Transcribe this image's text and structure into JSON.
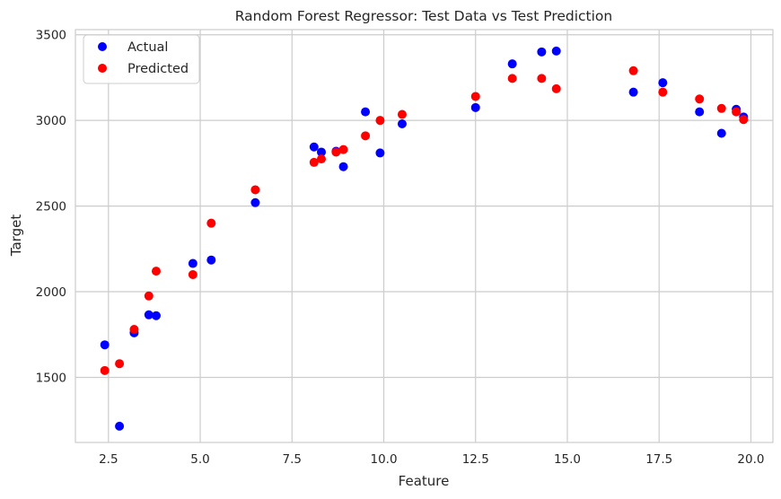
{
  "chart_data": {
    "type": "scatter",
    "title": "Random Forest Regressor: Test Data vs Test Prediction",
    "xlabel": "Feature",
    "ylabel": "Target",
    "xlim": [
      1.6,
      20.6
    ],
    "ylim": [
      1120,
      3530
    ],
    "xticks": [
      2.5,
      5.0,
      7.5,
      10.0,
      12.5,
      15.0,
      17.5,
      20.0
    ],
    "xtick_labels": [
      "2.5",
      "5.0",
      "7.5",
      "10.0",
      "12.5",
      "15.0",
      "17.5",
      "20.0"
    ],
    "yticks": [
      1500,
      2000,
      2500,
      3000,
      3500
    ],
    "ytick_labels": [
      "1500",
      "2000",
      "2500",
      "3000",
      "3500"
    ],
    "grid": true,
    "legend_position": "top-left",
    "series": [
      {
        "name": "Actual",
        "color": "#0000ff",
        "points": [
          [
            2.4,
            1690
          ],
          [
            2.8,
            1215
          ],
          [
            3.2,
            1760
          ],
          [
            3.6,
            1865
          ],
          [
            3.8,
            1860
          ],
          [
            4.8,
            2165
          ],
          [
            5.3,
            2185
          ],
          [
            6.5,
            2520
          ],
          [
            8.1,
            2845
          ],
          [
            8.3,
            2815
          ],
          [
            8.7,
            2820
          ],
          [
            8.9,
            2730
          ],
          [
            9.5,
            3050
          ],
          [
            9.9,
            2810
          ],
          [
            10.5,
            2980
          ],
          [
            12.5,
            3075
          ],
          [
            13.5,
            3330
          ],
          [
            14.3,
            3400
          ],
          [
            14.7,
            3405
          ],
          [
            16.8,
            3165
          ],
          [
            17.6,
            3220
          ],
          [
            18.6,
            3050
          ],
          [
            19.2,
            2925
          ],
          [
            19.6,
            3065
          ],
          [
            19.8,
            3020
          ]
        ]
      },
      {
        "name": "Predicted",
        "color": "#ff0000",
        "points": [
          [
            2.4,
            1540
          ],
          [
            2.8,
            1580
          ],
          [
            3.2,
            1780
          ],
          [
            3.6,
            1975
          ],
          [
            3.8,
            2120
          ],
          [
            4.8,
            2100
          ],
          [
            5.3,
            2400
          ],
          [
            6.5,
            2595
          ],
          [
            8.1,
            2755
          ],
          [
            8.3,
            2775
          ],
          [
            8.7,
            2815
          ],
          [
            8.9,
            2830
          ],
          [
            9.5,
            2910
          ],
          [
            9.9,
            3000
          ],
          [
            10.5,
            3035
          ],
          [
            12.5,
            3140
          ],
          [
            13.5,
            3245
          ],
          [
            14.3,
            3245
          ],
          [
            14.7,
            3185
          ],
          [
            16.8,
            3290
          ],
          [
            17.6,
            3165
          ],
          [
            18.6,
            3125
          ],
          [
            19.2,
            3070
          ],
          [
            19.6,
            3050
          ],
          [
            19.8,
            3005
          ]
        ]
      }
    ]
  }
}
